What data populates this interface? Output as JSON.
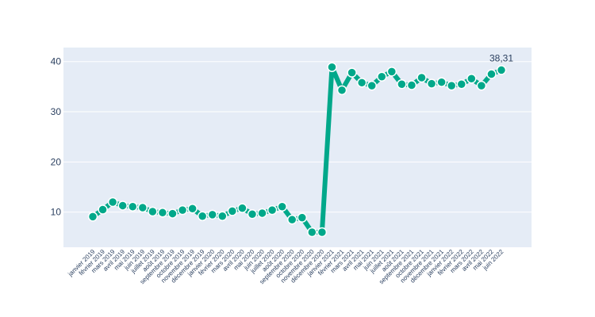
{
  "chart_data": {
    "type": "line",
    "categories": [
      "janvier 2019",
      "février 2019",
      "mars 2019",
      "avril 2019",
      "mai 2019",
      "juin 2019",
      "juillet 2019",
      "août 2019",
      "septembre 2019",
      "octobre 2019",
      "novembre 2019",
      "décembre 2019",
      "janvier 2020",
      "février 2020",
      "mars 2020",
      "avril 2020",
      "mai 2020",
      "juin 2020",
      "juillet 2020",
      "août 2020",
      "septembre 2020",
      "octobre 2020",
      "novembre 2020",
      "décembre 2020",
      "janvier 2021",
      "février 2021",
      "mars 2021",
      "avril 2021",
      "mai 2021",
      "juin 2021",
      "juillet 2021",
      "août 2021",
      "septembre 2021",
      "octobre 2021",
      "novembre 2021",
      "décembre 2021",
      "janvier 2022",
      "février 2022",
      "mars 2022",
      "avril 2022",
      "mai 2022",
      "juin 2022"
    ],
    "series": [
      {
        "values": [
          9.1,
          10.5,
          12.0,
          11.3,
          11.1,
          10.9,
          10.1,
          9.9,
          9.7,
          10.4,
          10.7,
          9.2,
          9.5,
          9.2,
          10.2,
          10.8,
          9.6,
          9.8,
          10.4,
          11.1,
          8.5,
          8.9,
          6.0,
          6.0,
          38.9,
          34.3,
          37.8,
          35.8,
          35.2,
          37.0,
          38.0,
          35.5,
          35.3,
          36.8,
          35.6,
          35.9,
          35.2,
          35.5,
          36.6,
          35.2,
          37.5,
          38.31
        ],
        "color": "#00a88a"
      }
    ],
    "annotations": [
      {
        "index": 41,
        "text": "38,31"
      }
    ],
    "yticks": [
      "10",
      "20",
      "30",
      "40"
    ],
    "ylim": [
      3.0,
      42.8
    ],
    "title": "",
    "xlabel": "",
    "ylabel": "",
    "grid": true,
    "plot_background": "#e5ecf6",
    "grid_color": "#ffffff",
    "tick_color": "#2a3f5f"
  }
}
